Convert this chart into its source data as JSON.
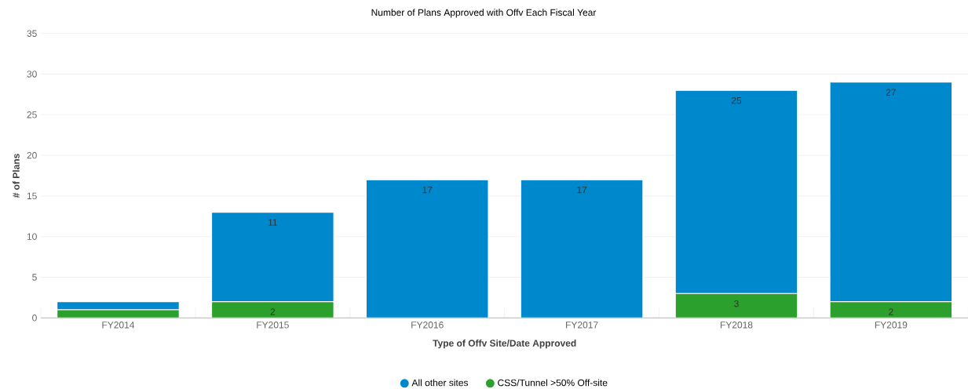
{
  "chart_data": {
    "type": "bar",
    "title": "Number of Plans Approved with Offv Each Fiscal Year",
    "xlabel": "Type of Offv Site/Date Approved",
    "ylabel": "# of Plans",
    "categories": [
      "FY2014",
      "FY2015",
      "FY2016",
      "FY2017",
      "FY2018",
      "FY2019"
    ],
    "stacked": true,
    "series": [
      {
        "name": "CSS/Tunnel >50% Off-site",
        "color": "#2ca02c",
        "values": [
          1,
          2,
          0,
          0,
          3,
          2
        ],
        "value_labels": [
          null,
          "2",
          null,
          null,
          "3",
          "2"
        ]
      },
      {
        "name": "All other sites",
        "color": "#0088cc",
        "values": [
          1,
          11,
          17,
          17,
          25,
          27
        ],
        "value_labels": [
          null,
          "11",
          "17",
          "17",
          "25",
          "27"
        ]
      }
    ],
    "ylim": [
      0,
      35
    ],
    "yticks": [
      0,
      5,
      10,
      15,
      20,
      25,
      30,
      35
    ],
    "grid": "y",
    "legend": "bottom",
    "marker": "circle"
  }
}
